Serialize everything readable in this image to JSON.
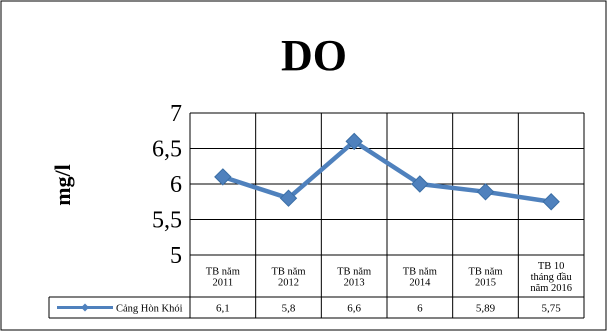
{
  "chart_data": {
    "type": "line",
    "title": "DO",
    "ylabel": "mg/l",
    "xlabel": "",
    "categories": [
      [
        "TB năm",
        "2011"
      ],
      [
        "TB năm",
        "2012"
      ],
      [
        "TB  năm",
        "2013"
      ],
      [
        "TB năm",
        "2014"
      ],
      [
        "TB năm",
        "2015"
      ],
      [
        "TB 10",
        "tháng đầu",
        "năm 2016"
      ]
    ],
    "yticks": [
      "7",
      "6,5",
      "6",
      "5,5",
      "5"
    ],
    "ylim": [
      5,
      7
    ],
    "grid": true,
    "legend_placement": "data-table",
    "series": [
      {
        "name": "Cảng Hòn Khói",
        "values": [
          6.1,
          5.8,
          6.6,
          6.0,
          5.89,
          5.75
        ],
        "labels": [
          "6,1",
          "5,8",
          "6,6",
          "6",
          "5,89",
          "5,75"
        ],
        "color": "#4f81bd"
      }
    ]
  }
}
